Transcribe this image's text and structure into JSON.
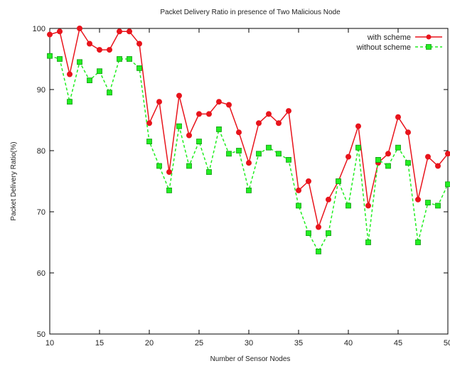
{
  "chart_data": {
    "type": "line",
    "title": "Packet Delivery Ratio in presence of Two Malicious Node",
    "xlabel": "Number of Sensor Nodes",
    "ylabel": "Packet Delivery Ratio(%)",
    "xlim": [
      10,
      50
    ],
    "ylim": [
      50,
      100
    ],
    "xticks": [
      10,
      15,
      20,
      25,
      30,
      35,
      40,
      45,
      50
    ],
    "yticks": [
      50,
      60,
      70,
      80,
      90,
      100
    ],
    "grid": false,
    "legend_position": "top-right",
    "x": [
      10,
      11,
      12,
      13,
      14,
      15,
      16,
      17,
      18,
      19,
      20,
      21,
      22,
      23,
      24,
      25,
      26,
      27,
      28,
      29,
      30,
      31,
      32,
      33,
      34,
      35,
      36,
      37,
      38,
      39,
      40,
      41,
      42,
      43,
      44,
      45,
      46,
      47,
      48,
      49,
      50
    ],
    "series": [
      {
        "name": "with scheme",
        "color": "#e8141c",
        "marker": "circle",
        "line_style": "solid",
        "values": [
          99,
          99.5,
          92.5,
          100,
          97.5,
          96.5,
          96.5,
          99.5,
          99.5,
          97.5,
          84.5,
          88,
          76.5,
          89,
          82.5,
          86,
          86,
          88,
          87.5,
          83,
          78,
          84.5,
          86,
          84.5,
          86.5,
          73.5,
          75,
          67.5,
          72,
          75,
          79,
          84,
          71,
          78,
          79.5,
          85.5,
          83,
          72,
          79,
          77.5,
          79.5
        ]
      },
      {
        "name": "without scheme",
        "color": "#22ee22",
        "marker": "square",
        "line_style": "dashed",
        "values": [
          95.5,
          95,
          88,
          94.5,
          91.5,
          93,
          89.5,
          95,
          95,
          93.5,
          81.5,
          77.5,
          73.5,
          84,
          77.5,
          81.5,
          76.5,
          83.5,
          79.5,
          80,
          73.5,
          79.5,
          80.5,
          79.5,
          78.5,
          71,
          66.5,
          63.5,
          66.5,
          75,
          71,
          80.5,
          65,
          78.5,
          77.5,
          80.5,
          78,
          65,
          71.5,
          71,
          74.5
        ]
      }
    ]
  }
}
